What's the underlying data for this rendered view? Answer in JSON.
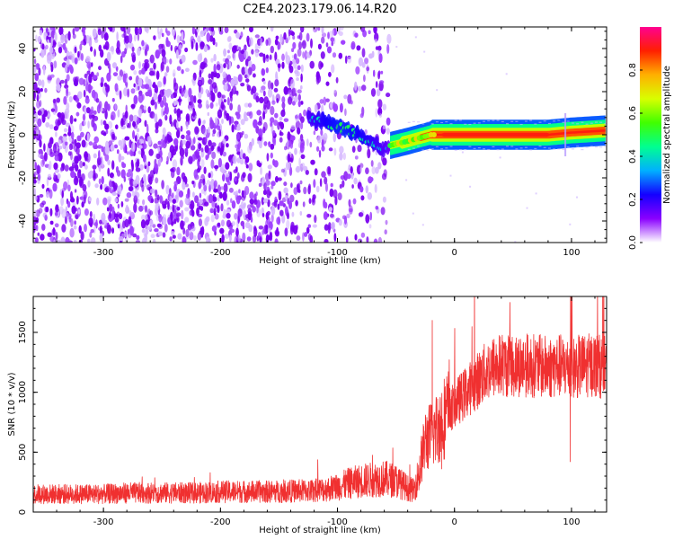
{
  "figure_title": "C2E4.2023.179.06.14.R20",
  "chart_data": [
    {
      "type": "heatmap",
      "xlabel": "Height of straight line (km)",
      "ylabel": "Frequency (Hz)",
      "xlim": [
        -360,
        130
      ],
      "ylim": [
        -50,
        50
      ],
      "x_ticks": [
        -300,
        -200,
        -100,
        0,
        100
      ],
      "x_tick_labels": [
        "-300",
        "-200",
        "-100",
        "0",
        "100"
      ],
      "y_ticks": [
        -40,
        -20,
        0,
        20,
        40
      ],
      "y_tick_labels": [
        "-40",
        "-20",
        "0",
        "20",
        "40"
      ],
      "colorbar": {
        "label": "Normalized spectral amplitude",
        "range": [
          0,
          1
        ],
        "ticks": [
          0,
          0.2,
          0.4,
          0.6,
          0.8
        ],
        "tick_labels": [
          "0.0",
          "0.2",
          "0.4",
          "0.6",
          "0.8"
        ],
        "colormap": "gist_rainbow",
        "stops": [
          "#ffffff",
          "#8a00ff",
          "#1400ff",
          "#00b0ff",
          "#00ff90",
          "#40ff00",
          "#d8ff00",
          "#ffb000",
          "#ff2000",
          "#ff0090"
        ]
      },
      "regions": [
        {
          "description": "diffuse noise speckle",
          "x_range": [
            -360,
            -55
          ],
          "frequency_range": [
            -50,
            50
          ],
          "typical_amplitude": 0.08
        },
        {
          "description": "signal track with wide drift",
          "x": [
            -125,
            -110,
            -95,
            -80,
            -70,
            -60,
            -55
          ],
          "frequency": [
            8,
            6,
            3,
            0,
            -3,
            -7,
            -5
          ],
          "amplitude": [
            0.3,
            0.4,
            0.45,
            0.4,
            0.35,
            0.3,
            0.25
          ]
        },
        {
          "description": "steady carrier near 0 Hz",
          "x": [
            -55,
            -40,
            -20,
            0,
            20,
            50,
            80,
            100,
            130
          ],
          "frequency": [
            -5,
            -3,
            0,
            0,
            0,
            0,
            0,
            1,
            2
          ],
          "amplitude": [
            0.5,
            0.7,
            0.9,
            1.0,
            1.0,
            1.0,
            0.95,
            0.9,
            0.85
          ]
        }
      ]
    },
    {
      "type": "line",
      "xlabel": "Height of straight line (km)",
      "ylabel": "SNR (10 * v/v)",
      "xlim": [
        -360,
        130
      ],
      "ylim": [
        0,
        1800
      ],
      "x_ticks": [
        -300,
        -200,
        -100,
        0,
        100
      ],
      "x_tick_labels": [
        "-300",
        "-200",
        "-100",
        "0",
        "100"
      ],
      "y_ticks": [
        0,
        500,
        1000,
        1500
      ],
      "y_tick_labels": [
        "0",
        "500",
        "1000",
        "1500"
      ],
      "series": [
        {
          "color": "#f03030",
          "x": [
            -360,
            -340,
            -320,
            -300,
            -280,
            -260,
            -240,
            -220,
            -200,
            -180,
            -160,
            -140,
            -120,
            -110,
            -100,
            -90,
            -80,
            -70,
            -60,
            -50,
            -40,
            -35,
            -30,
            -25,
            -20,
            -15,
            -10,
            -5,
            0,
            10,
            20,
            30,
            40,
            50,
            60,
            70,
            80,
            90,
            100,
            110,
            120,
            130
          ],
          "y": [
            150,
            150,
            150,
            150,
            160,
            160,
            160,
            160,
            170,
            170,
            170,
            175,
            180,
            190,
            210,
            240,
            260,
            270,
            280,
            260,
            200,
            180,
            330,
            600,
            640,
            700,
            780,
            840,
            900,
            1000,
            1100,
            1200,
            1230,
            1220,
            1230,
            1220,
            1210,
            1220,
            1200,
            1220,
            1230,
            1200
          ]
        }
      ],
      "annotations": [
        {
          "description": "spike",
          "x": -19,
          "y": 1600
        },
        {
          "description": "spike",
          "x": 100,
          "y": 1780
        },
        {
          "description": "dip",
          "x": 99,
          "y": 420
        },
        {
          "description": "dip",
          "x": -11,
          "y": 360
        }
      ]
    }
  ]
}
